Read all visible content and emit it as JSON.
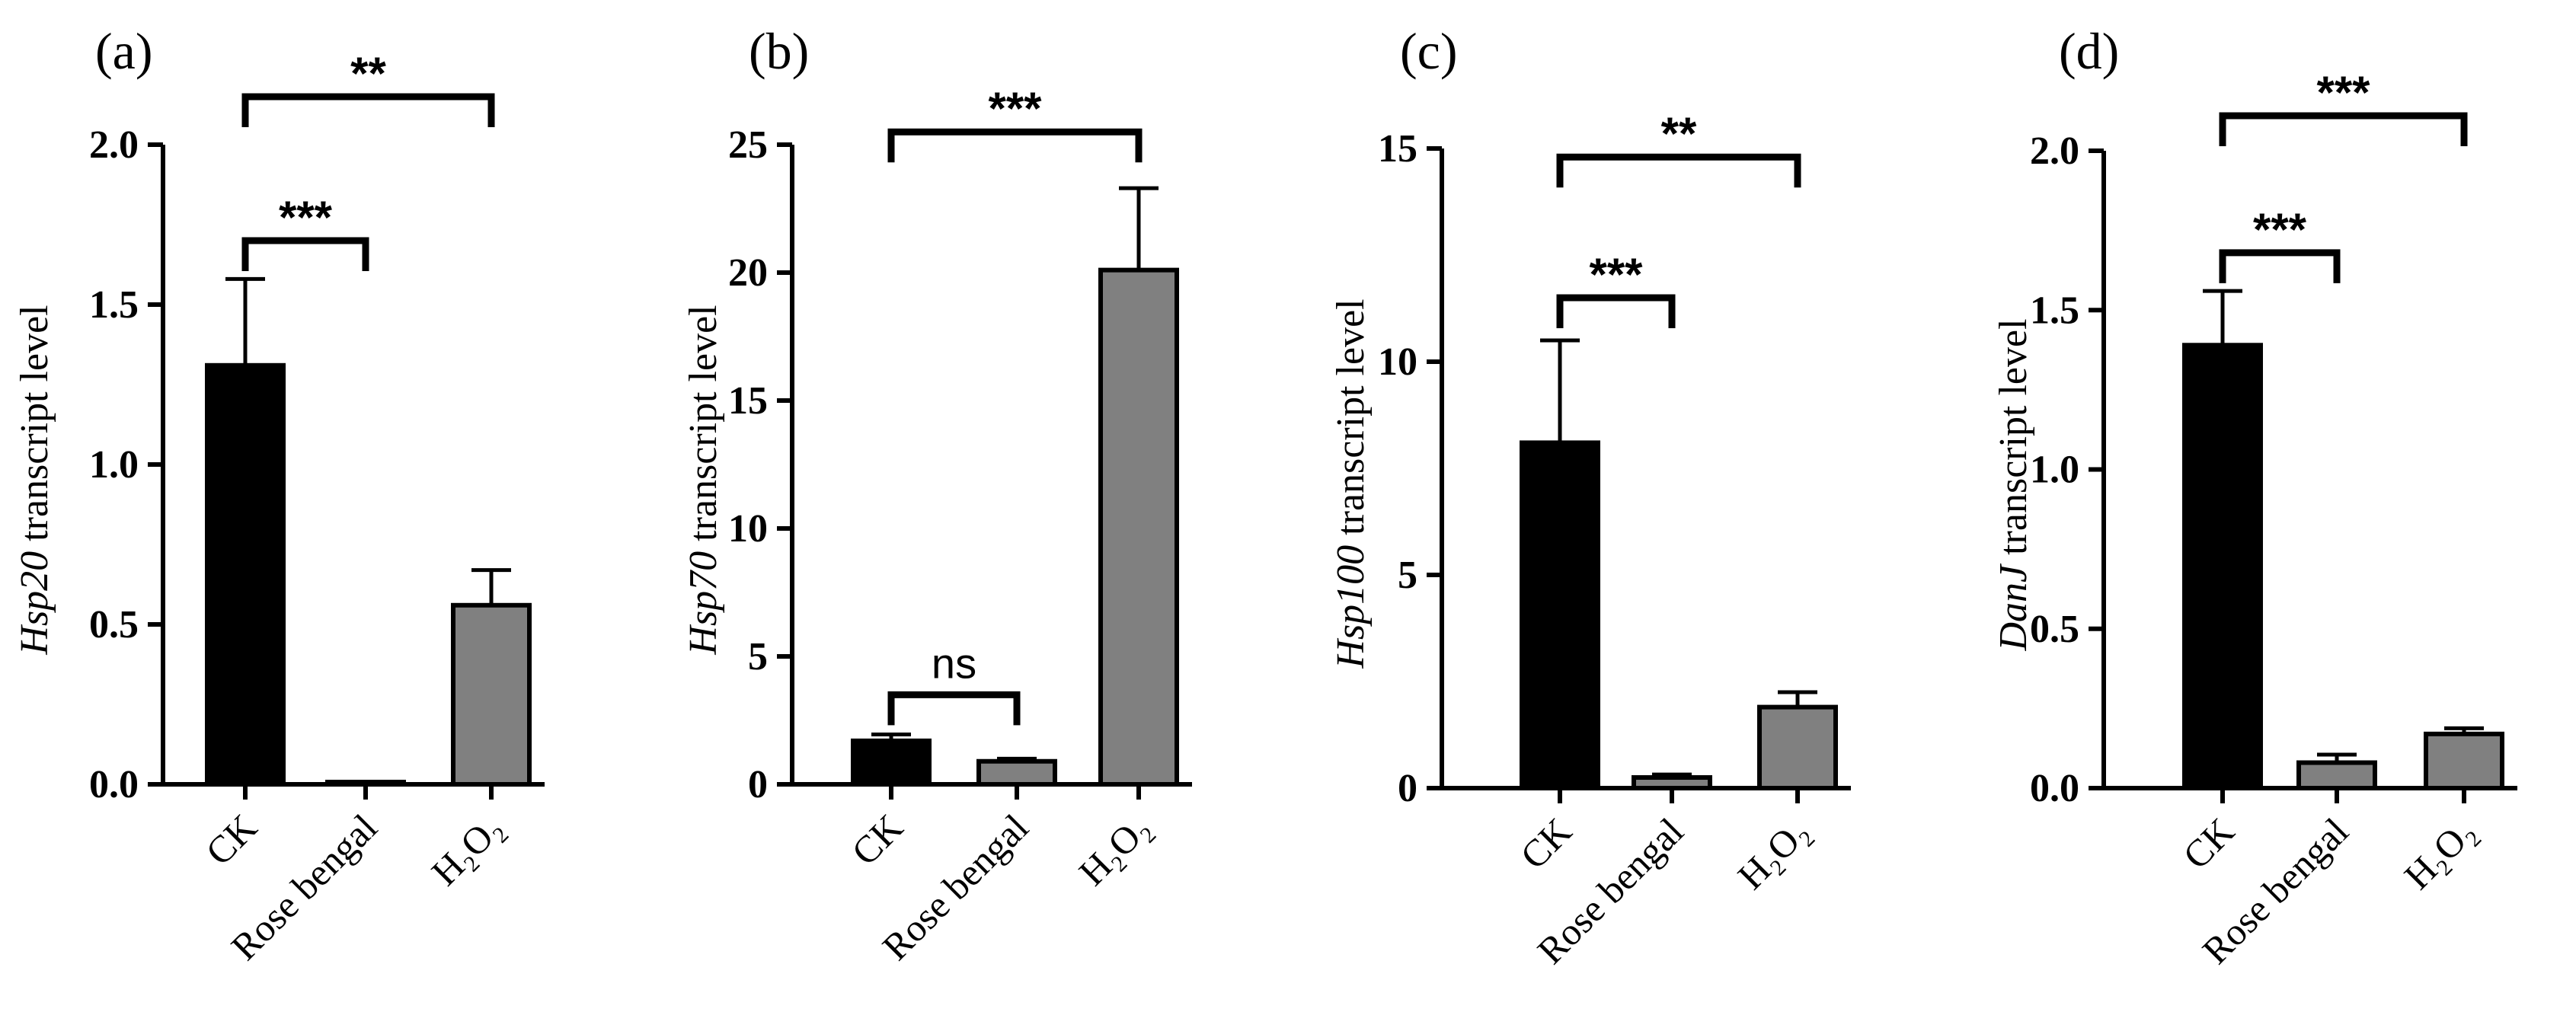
{
  "chart_data": [
    {
      "type": "bar",
      "panel": "(a)",
      "gene": "Hsp20",
      "ylabel_rest": " transcript level",
      "categories": [
        "CK",
        "Rose bengal",
        "H₂O₂"
      ],
      "values": [
        1.31,
        0.005,
        0.56
      ],
      "errors": [
        0.27,
        0.0,
        0.11
      ],
      "colors": [
        "#000000",
        "#808080",
        "#808080"
      ],
      "ylim": [
        0,
        2.0
      ],
      "yticks": [
        0.0,
        0.5,
        1.0,
        1.5,
        2.0
      ],
      "yticklabels": [
        "0.0",
        "0.5",
        "1.0",
        "1.5",
        "2.0"
      ],
      "significance": [
        {
          "from": 0,
          "to": 1,
          "level": 1.7,
          "label": "***"
        },
        {
          "from": 0,
          "to": 2,
          "level": 2.15,
          "label": "**"
        }
      ]
    },
    {
      "type": "bar",
      "panel": "(b)",
      "gene": "Hsp70",
      "ylabel_rest": " transcript level",
      "categories": [
        "CK",
        "Rose bengal",
        "H₂O₂"
      ],
      "values": [
        1.7,
        0.9,
        20.1
      ],
      "errors": [
        0.25,
        0.1,
        3.2
      ],
      "colors": [
        "#000000",
        "#808080",
        "#808080"
      ],
      "ylim": [
        0,
        25
      ],
      "yticks": [
        0,
        5,
        10,
        15,
        20,
        25
      ],
      "yticklabels": [
        "0",
        "5",
        "10",
        "15",
        "20",
        "25"
      ],
      "significance": [
        {
          "from": 0,
          "to": 1,
          "level": 3.5,
          "label": "ns"
        },
        {
          "from": 0,
          "to": 2,
          "level": 25.5,
          "label": "***"
        }
      ]
    },
    {
      "type": "bar",
      "panel": "(c)",
      "gene": "Hsp100",
      "ylabel_rest": " transcript level",
      "categories": [
        "CK",
        "Rose bengal",
        "H₂O₂"
      ],
      "values": [
        8.1,
        0.25,
        1.9
      ],
      "errors": [
        2.4,
        0.07,
        0.35
      ],
      "colors": [
        "#000000",
        "#808080",
        "#808080"
      ],
      "ylim": [
        0,
        15
      ],
      "yticks": [
        0,
        5,
        10,
        15
      ],
      "yticklabels": [
        "0",
        "5",
        "10",
        "15"
      ],
      "significance": [
        {
          "from": 0,
          "to": 1,
          "level": 11.5,
          "label": "***"
        },
        {
          "from": 0,
          "to": 2,
          "level": 14.8,
          "label": "**"
        }
      ]
    },
    {
      "type": "bar",
      "panel": "(d)",
      "gene": "DanJ",
      "ylabel_rest": " transcript level",
      "categories": [
        "CK",
        "Rose bengal",
        "H₂O₂"
      ],
      "values": [
        1.39,
        0.08,
        0.17
      ],
      "errors": [
        0.17,
        0.025,
        0.018
      ],
      "colors": [
        "#000000",
        "#808080",
        "#808080"
      ],
      "ylim": [
        0,
        2.0
      ],
      "yticks": [
        0.0,
        0.5,
        1.0,
        1.5,
        2.0
      ],
      "yticklabels": [
        "0.0",
        "0.5",
        "1.0",
        "1.5",
        "2.0"
      ],
      "significance": [
        {
          "from": 0,
          "to": 1,
          "level": 1.68,
          "label": "***"
        },
        {
          "from": 0,
          "to": 2,
          "level": 2.11,
          "label": "***"
        }
      ]
    }
  ]
}
